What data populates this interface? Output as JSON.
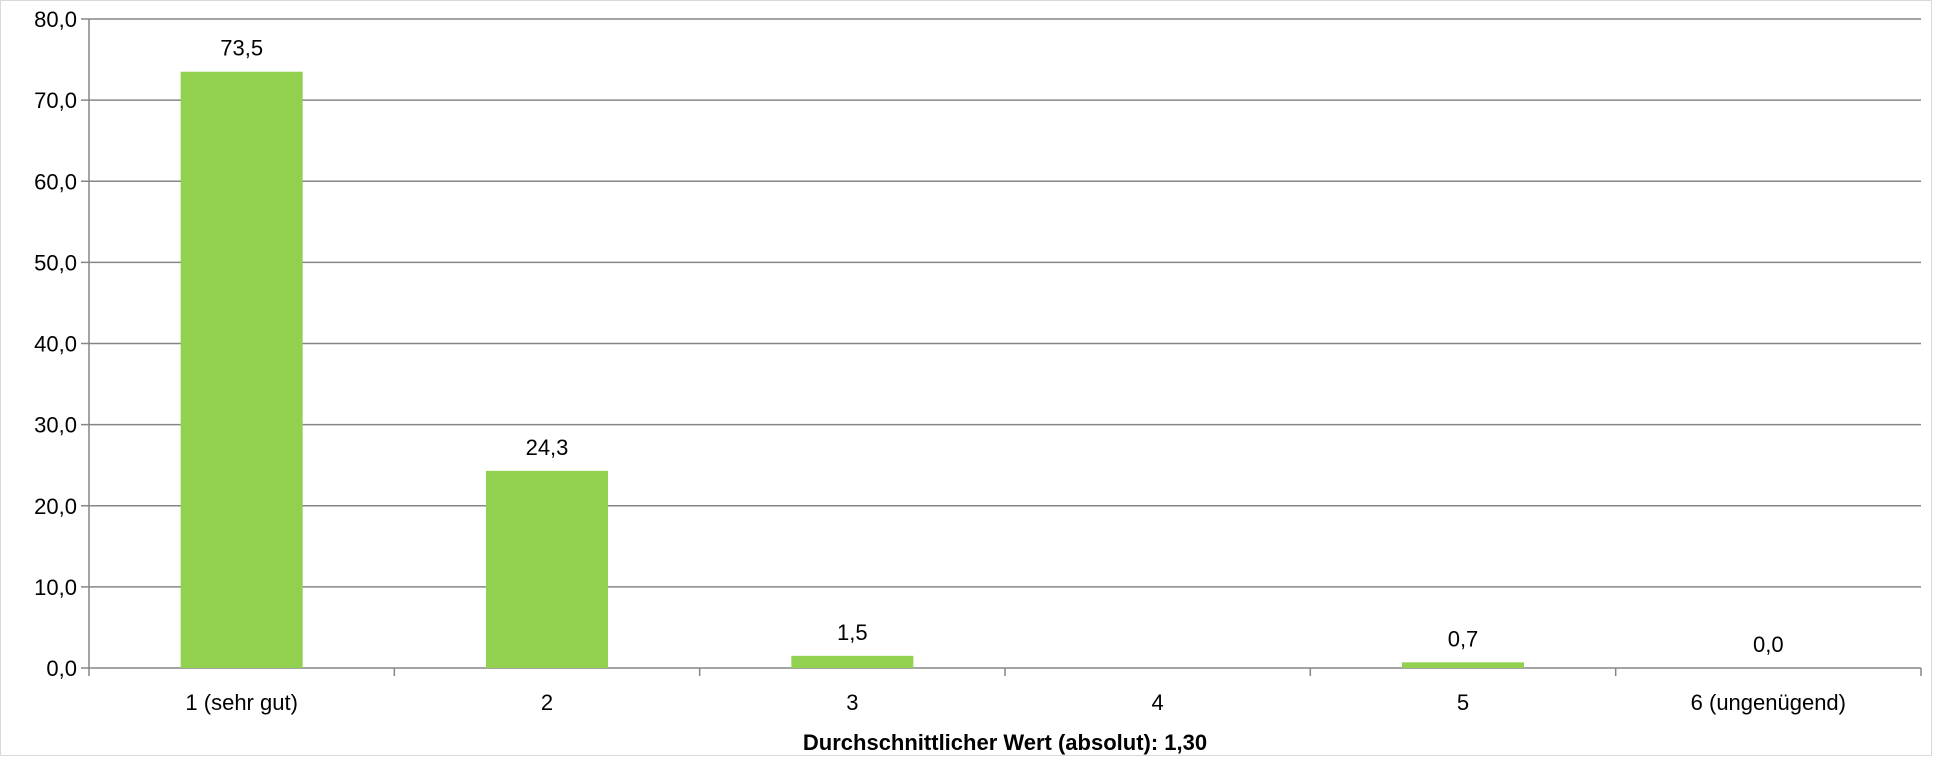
{
  "chart_data": {
    "type": "bar",
    "categories": [
      "1 (sehr gut)",
      "2",
      "3",
      "4",
      "5",
      "6 (ungenügend)"
    ],
    "values": [
      73.5,
      24.3,
      1.5,
      null,
      0.7,
      0.0
    ],
    "data_labels": [
      "73,5",
      "24,3",
      "1,5",
      "",
      "0,7",
      "0,0"
    ],
    "title": "",
    "xlabel": "Durchschnittlicher Wert (absolut): 1,30",
    "ylabel": "",
    "ylim": [
      0,
      80
    ],
    "yticks": [
      0,
      10,
      20,
      30,
      40,
      50,
      60,
      70,
      80
    ],
    "ytick_labels": [
      "0,0",
      "10,0",
      "20,0",
      "30,0",
      "40,0",
      "50,0",
      "60,0",
      "70,0",
      "80,0"
    ],
    "grid": true,
    "legend": "none",
    "colors": {
      "bar": "#92d050",
      "grid": "#868686",
      "axis": "#868686"
    }
  }
}
